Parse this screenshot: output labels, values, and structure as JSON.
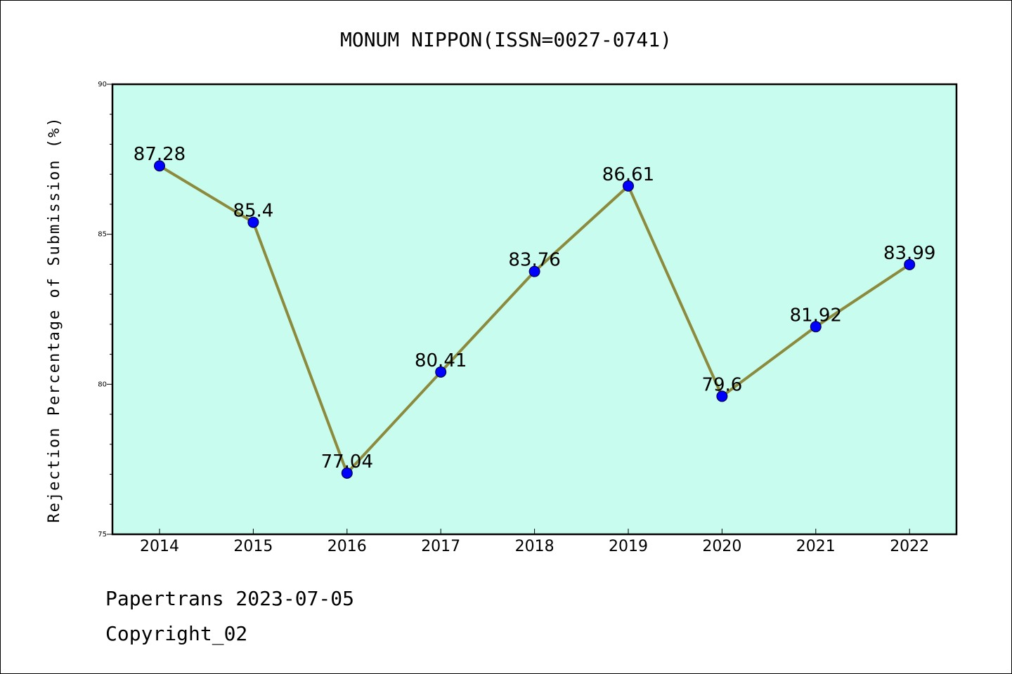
{
  "chart_data": {
    "type": "line",
    "title": "MONUM NIPPON(ISSN=0027-0741)",
    "xlabel": "",
    "ylabel": "Rejection Percentage of Submission (%)",
    "categories": [
      "2014",
      "2015",
      "2016",
      "2017",
      "2018",
      "2019",
      "2020",
      "2021",
      "2022"
    ],
    "values": [
      87.28,
      85.4,
      77.04,
      80.41,
      83.76,
      86.61,
      79.6,
      81.92,
      83.99
    ],
    "data_labels": [
      "87.28",
      "85.4",
      "77.04",
      "80.41",
      "83.76",
      "86.61",
      "79.6",
      "81.92",
      "83.99"
    ],
    "ylim": [
      75,
      90
    ],
    "yticks": [
      75,
      80,
      85,
      90
    ],
    "grid": false,
    "colors": {
      "plot_background": "#c8fcee",
      "line": "#8c8a3c",
      "marker": "#0000ff"
    }
  },
  "footer": {
    "line1": "Papertrans 2023-07-05",
    "line2": "Copyright_02"
  }
}
